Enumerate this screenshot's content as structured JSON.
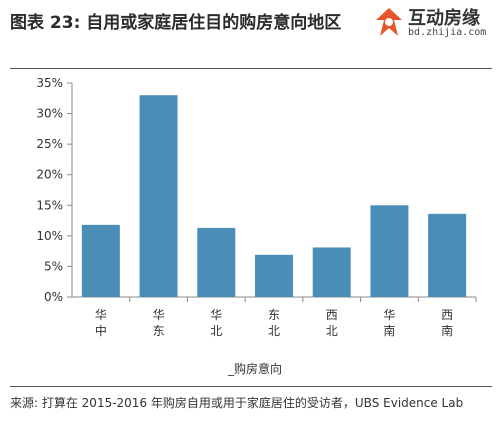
{
  "title": "图表 23: 自用或家庭居住目的购房意向地区",
  "watermark": {
    "brand": "互动房缘",
    "url": "bd.zhijia.com"
  },
  "colors": {
    "bar": "#4a8db6",
    "axis": "#888888",
    "text": "#333333"
  },
  "chart_data": {
    "type": "bar",
    "title": "",
    "xlabel": "_购房意向",
    "ylabel": "",
    "ylim": [
      0,
      35
    ],
    "yticks": [
      "0%",
      "5%",
      "10%",
      "15%",
      "20%",
      "25%",
      "30%",
      "35%"
    ],
    "categories": [
      "华中",
      "华东",
      "华北",
      "东北",
      "西北",
      "华南",
      "西南"
    ],
    "values": [
      11.8,
      33.0,
      11.3,
      6.9,
      8.1,
      15.0,
      13.6
    ],
    "grid": false,
    "legend": "none"
  },
  "source": "来源: 打算在 2015-2016 年购房自用或用于家庭居住的受访者，UBS Evidence Lab"
}
